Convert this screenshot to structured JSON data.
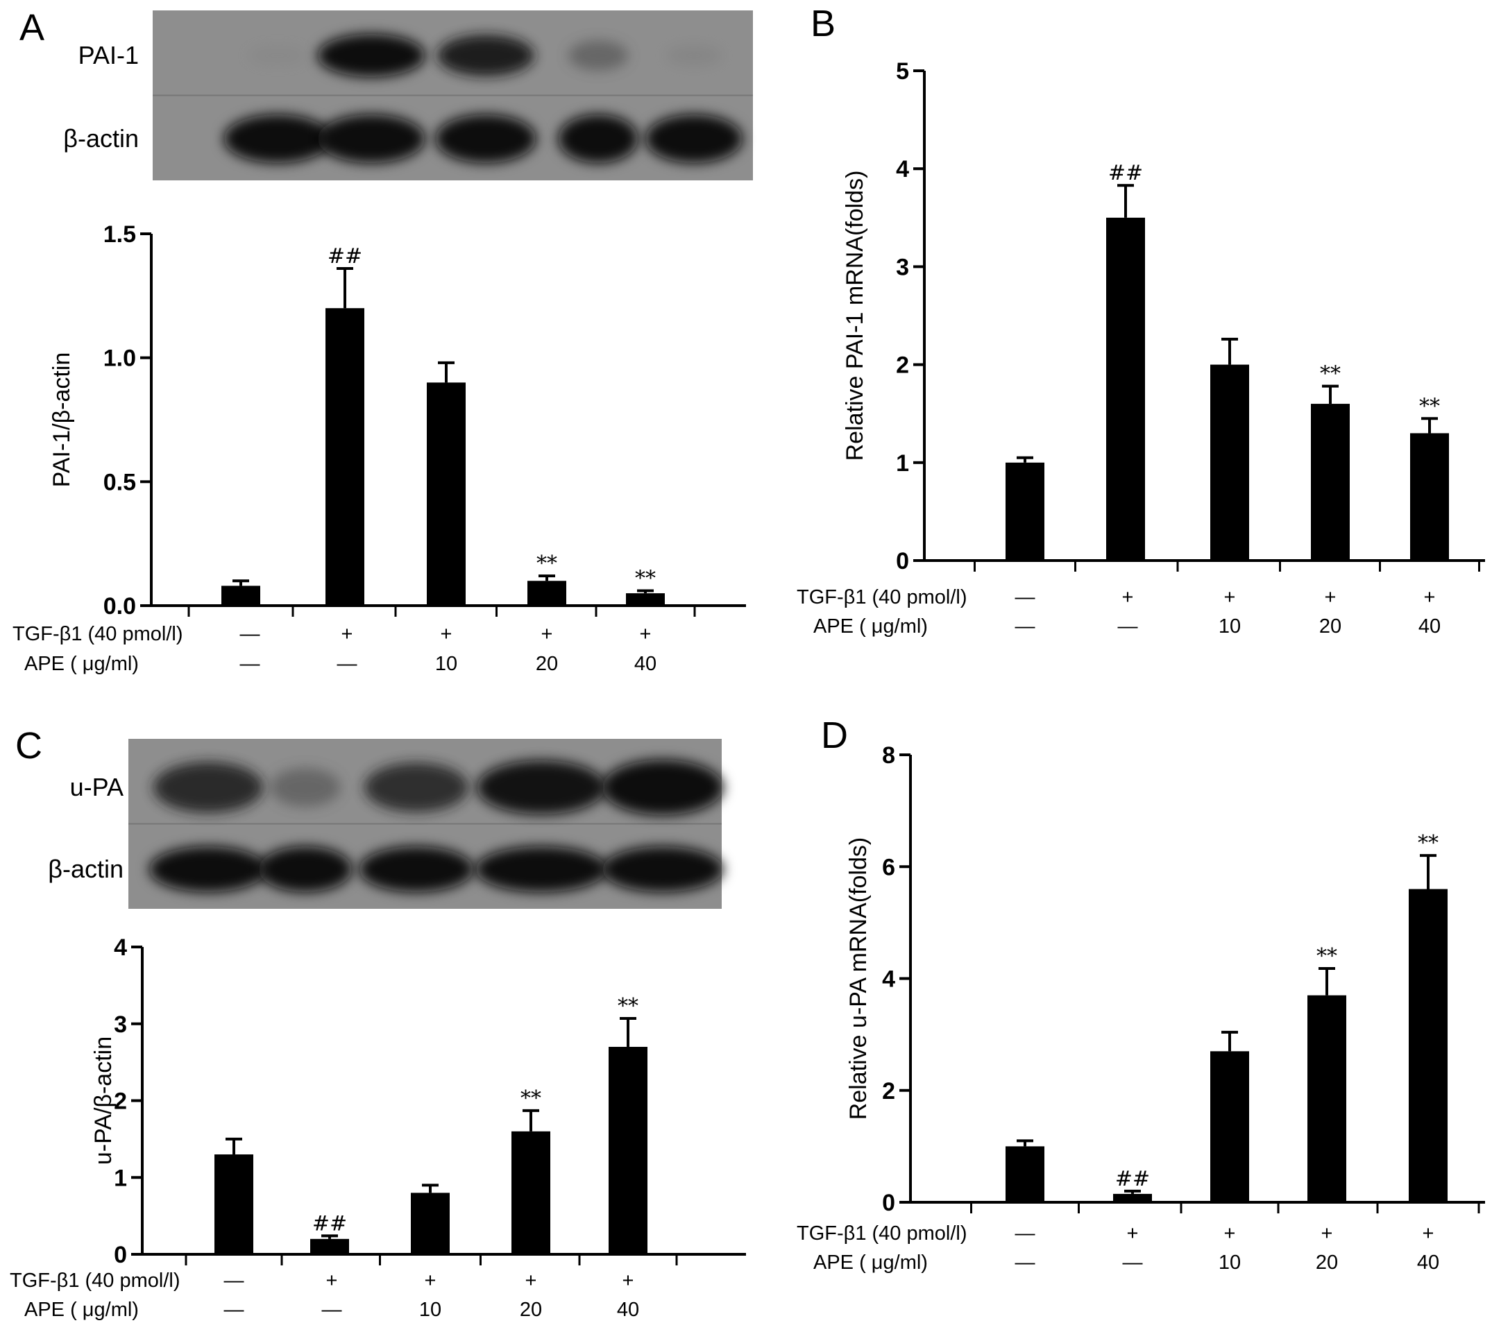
{
  "condition_rows": {
    "tgf_label": "TGF-β1 (40 pmol/l)",
    "ape_label": "APE ( μg/ml)",
    "tgf_values": [
      "—",
      "+",
      "+",
      "+",
      "+"
    ],
    "ape_values": [
      "—",
      "—",
      "10",
      "20",
      "40"
    ]
  },
  "blots": [
    {
      "panel": "A",
      "lanes": 5,
      "bands": [
        {
          "label": "PAI-1",
          "intensities": [
            0.02,
            1.0,
            0.92,
            0.45,
            0.08
          ]
        },
        {
          "label": "β-actin",
          "intensities": [
            1.0,
            1.0,
            1.0,
            1.0,
            1.0
          ]
        }
      ]
    },
    {
      "panel": "C",
      "lanes": 5,
      "bands": [
        {
          "label": "u-PA",
          "intensities": [
            0.85,
            0.45,
            0.8,
            0.95,
            1.0
          ]
        },
        {
          "label": "β-actin",
          "intensities": [
            1.0,
            1.0,
            1.0,
            1.0,
            1.0
          ]
        }
      ]
    }
  ],
  "chart_data": [
    {
      "panel": "A",
      "type": "bar",
      "categories": [
        "1",
        "2",
        "3",
        "4",
        "5"
      ],
      "values": [
        0.08,
        1.2,
        0.9,
        0.1,
        0.05
      ],
      "errors": [
        0.02,
        0.16,
        0.08,
        0.02,
        0.01
      ],
      "significance": [
        "",
        "##",
        "",
        "**",
        "**"
      ],
      "xlabel": "",
      "ylabel": "PAI-1/β-actin",
      "ylim": [
        0,
        1.5
      ],
      "yticks": [
        "0.0",
        "0.5",
        "1.0",
        "1.5"
      ],
      "ytick_values": [
        0,
        0.5,
        1.0,
        1.5
      ]
    },
    {
      "panel": "B",
      "type": "bar",
      "categories": [
        "1",
        "2",
        "3",
        "4",
        "5"
      ],
      "values": [
        1.0,
        3.5,
        2.0,
        1.6,
        1.3
      ],
      "errors": [
        0.05,
        0.33,
        0.26,
        0.18,
        0.15
      ],
      "significance": [
        "",
        "##",
        "",
        "**",
        "**"
      ],
      "xlabel": "",
      "ylabel": "Relative PAI-1 mRNA(folds)",
      "ylim": [
        0,
        5
      ],
      "yticks": [
        "0",
        "1",
        "2",
        "3",
        "4",
        "5"
      ],
      "ytick_values": [
        0,
        1,
        2,
        3,
        4,
        5
      ]
    },
    {
      "panel": "C",
      "type": "bar",
      "categories": [
        "1",
        "2",
        "3",
        "4",
        "5"
      ],
      "values": [
        1.3,
        0.2,
        0.8,
        1.6,
        2.7
      ],
      "errors": [
        0.2,
        0.04,
        0.1,
        0.27,
        0.37
      ],
      "significance": [
        "",
        "##",
        "",
        "**",
        "**"
      ],
      "xlabel": "",
      "ylabel": "u-PA/β-actin",
      "ylim": [
        0,
        4
      ],
      "yticks": [
        "0",
        "1",
        "2",
        "3",
        "4"
      ],
      "ytick_values": [
        0,
        1,
        2,
        3,
        4
      ]
    },
    {
      "panel": "D",
      "type": "bar",
      "categories": [
        "1",
        "2",
        "3",
        "4",
        "5"
      ],
      "values": [
        1.0,
        0.15,
        2.7,
        3.7,
        5.6
      ],
      "errors": [
        0.1,
        0.05,
        0.34,
        0.48,
        0.6
      ],
      "significance": [
        "",
        "##",
        "",
        "**",
        "**"
      ],
      "xlabel": "",
      "ylabel": "Relative u-PA mRNA(folds)",
      "ylim": [
        0,
        8
      ],
      "yticks": [
        "0",
        "2",
        "4",
        "6",
        "8"
      ],
      "ytick_values": [
        0,
        2,
        4,
        6,
        8
      ]
    }
  ]
}
